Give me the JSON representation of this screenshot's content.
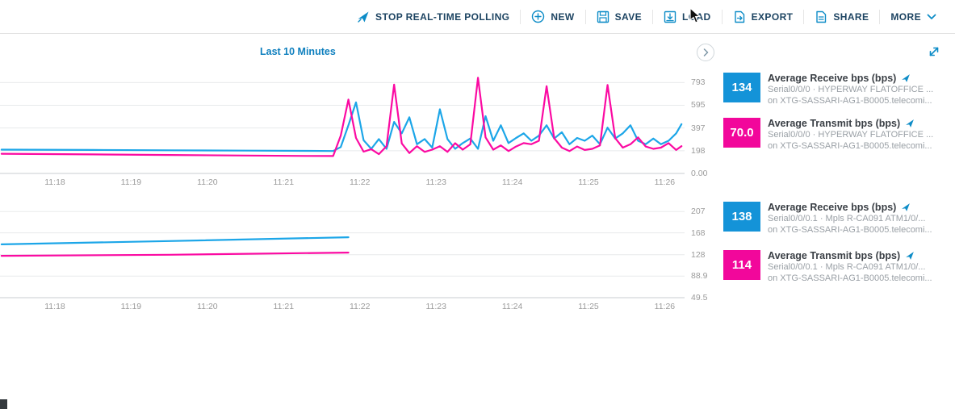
{
  "toolbar": {
    "items": [
      {
        "label": "STOP REAL-TIME POLLING",
        "icon": "rocket"
      },
      {
        "label": "NEW",
        "icon": "plus-circle"
      },
      {
        "label": "SAVE",
        "icon": "save"
      },
      {
        "label": "LOAD",
        "icon": "load"
      },
      {
        "label": "EXPORT",
        "icon": "export"
      },
      {
        "label": "SHARE",
        "icon": "share"
      },
      {
        "label": "MORE",
        "icon": "chevron-down"
      }
    ]
  },
  "subheader": {
    "time_range_label": "Last 10 Minutes"
  },
  "colors": {
    "accent_blue": "#0d8cc7",
    "toolbar_text": "#1d4462",
    "line_blue": "#1ca6e8",
    "line_pink": "#fb0aa2",
    "box_blue": "#1493d8",
    "box_pink": "#f2079b",
    "axis_text": "#9b9b9b",
    "gridline": "#e8eaec"
  },
  "chart_data": [
    {
      "type": "line",
      "title": "",
      "xlabel": "time of day",
      "ylabel": "bps",
      "xlim": [
        17.28,
        26.26
      ],
      "ylim": [
        0,
        880
      ],
      "x_unit": "minutes after 11:00",
      "grid": "horizontal",
      "legend_position": "right",
      "ygrid": [
        {
          "v": 793,
          "label": "793"
        },
        {
          "v": 595,
          "label": "595"
        },
        {
          "v": 397,
          "label": "397"
        },
        {
          "v": 198,
          "label": "198"
        },
        {
          "v": 0,
          "label": "0.00"
        }
      ],
      "xticks": [
        {
          "v": 18,
          "label": "11:18"
        },
        {
          "v": 19,
          "label": "11:19"
        },
        {
          "v": 20,
          "label": "11:20"
        },
        {
          "v": 21,
          "label": "11:21"
        },
        {
          "v": 22,
          "label": "11:22"
        },
        {
          "v": 23,
          "label": "11:23"
        },
        {
          "v": 24,
          "label": "11:24"
        },
        {
          "v": 25,
          "label": "11:25"
        },
        {
          "v": 26,
          "label": "11:26"
        }
      ],
      "series": [
        {
          "name": "Average Receive bps (bps)",
          "color": "#1ca6e8",
          "points": [
            [
              17.3,
              208
            ],
            [
              18.5,
              205
            ],
            [
              19.5,
              202
            ],
            [
              20.5,
              199
            ],
            [
              21.3,
              197
            ],
            [
              21.65,
              196
            ],
            [
              21.75,
              230
            ],
            [
              21.85,
              420
            ],
            [
              21.95,
              620
            ],
            [
              22.05,
              290
            ],
            [
              22.15,
              215
            ],
            [
              22.25,
              300
            ],
            [
              22.35,
              215
            ],
            [
              22.45,
              450
            ],
            [
              22.55,
              350
            ],
            [
              22.65,
              490
            ],
            [
              22.75,
              255
            ],
            [
              22.85,
              300
            ],
            [
              22.95,
              225
            ],
            [
              23.05,
              560
            ],
            [
              23.15,
              300
            ],
            [
              23.25,
              215
            ],
            [
              23.35,
              265
            ],
            [
              23.45,
              305
            ],
            [
              23.55,
              215
            ],
            [
              23.65,
              500
            ],
            [
              23.75,
              285
            ],
            [
              23.85,
              420
            ],
            [
              23.95,
              265
            ],
            [
              24.05,
              310
            ],
            [
              24.15,
              350
            ],
            [
              24.25,
              285
            ],
            [
              24.35,
              330
            ],
            [
              24.45,
              420
            ],
            [
              24.55,
              305
            ],
            [
              24.65,
              360
            ],
            [
              24.75,
              255
            ],
            [
              24.85,
              310
            ],
            [
              24.95,
              285
            ],
            [
              25.05,
              330
            ],
            [
              25.15,
              255
            ],
            [
              25.25,
              400
            ],
            [
              25.35,
              305
            ],
            [
              25.45,
              350
            ],
            [
              25.55,
              420
            ],
            [
              25.65,
              285
            ],
            [
              25.75,
              255
            ],
            [
              25.85,
              305
            ],
            [
              25.95,
              255
            ],
            [
              26.05,
              285
            ],
            [
              26.15,
              350
            ],
            [
              26.22,
              430
            ]
          ]
        },
        {
          "name": "Average Transmit bps (bps)",
          "color": "#fb0aa2",
          "points": [
            [
              17.3,
              172
            ],
            [
              18.5,
              166
            ],
            [
              19.5,
              161
            ],
            [
              20.5,
              156
            ],
            [
              21.3,
              153
            ],
            [
              21.65,
              152
            ],
            [
              21.75,
              330
            ],
            [
              21.85,
              645
            ],
            [
              21.95,
              310
            ],
            [
              22.05,
              190
            ],
            [
              22.15,
              212
            ],
            [
              22.25,
              168
            ],
            [
              22.35,
              238
            ],
            [
              22.45,
              775
            ],
            [
              22.55,
              262
            ],
            [
              22.65,
              178
            ],
            [
              22.75,
              238
            ],
            [
              22.85,
              188
            ],
            [
              22.95,
              208
            ],
            [
              23.05,
              238
            ],
            [
              23.15,
              188
            ],
            [
              23.25,
              264
            ],
            [
              23.35,
              208
            ],
            [
              23.45,
              254
            ],
            [
              23.55,
              835
            ],
            [
              23.65,
              315
            ],
            [
              23.75,
              208
            ],
            [
              23.85,
              245
            ],
            [
              23.95,
              195
            ],
            [
              24.05,
              235
            ],
            [
              24.15,
              265
            ],
            [
              24.25,
              255
            ],
            [
              24.35,
              285
            ],
            [
              24.45,
              762
            ],
            [
              24.55,
              308
            ],
            [
              24.65,
              225
            ],
            [
              24.75,
              195
            ],
            [
              24.85,
              235
            ],
            [
              24.95,
              205
            ],
            [
              25.05,
              215
            ],
            [
              25.15,
              245
            ],
            [
              25.25,
              772
            ],
            [
              25.35,
              308
            ],
            [
              25.45,
              225
            ],
            [
              25.55,
              255
            ],
            [
              25.65,
              315
            ],
            [
              25.75,
              235
            ],
            [
              25.85,
              215
            ],
            [
              25.95,
              225
            ],
            [
              26.05,
              265
            ],
            [
              26.15,
              205
            ],
            [
              26.22,
              238
            ]
          ]
        }
      ],
      "legend": [
        {
          "value": "134",
          "color": "#1493d8",
          "title": "Average Receive bps (bps)",
          "line2": "Serial0/0/0 · HYPERWAY FLATOFFICE ...",
          "line3": "on XTG-SASSARI-AG1-B0005.telecomi..."
        },
        {
          "value": "70.0",
          "color": "#f2079b",
          "title": "Average Transmit bps (bps)",
          "line2": "Serial0/0/0 · HYPERWAY FLATOFFICE ...",
          "line3": "on XTG-SASSARI-AG1-B0005.telecomi..."
        }
      ]
    },
    {
      "type": "line",
      "title": "",
      "xlabel": "time of day",
      "ylabel": "bps",
      "xlim": [
        17.28,
        26.26
      ],
      "ylim": [
        49.5,
        225
      ],
      "x_unit": "minutes after 11:00",
      "grid": "horizontal",
      "legend_position": "right",
      "ygrid": [
        {
          "v": 207,
          "label": "207"
        },
        {
          "v": 168,
          "label": "168"
        },
        {
          "v": 128,
          "label": "128"
        },
        {
          "v": 88.9,
          "label": "88.9"
        },
        {
          "v": 49.5,
          "label": "49.5"
        }
      ],
      "xticks": [
        {
          "v": 18,
          "label": "11:18"
        },
        {
          "v": 19,
          "label": "11:19"
        },
        {
          "v": 20,
          "label": "11:20"
        },
        {
          "v": 21,
          "label": "11:21"
        },
        {
          "v": 22,
          "label": "11:22"
        },
        {
          "v": 23,
          "label": "11:23"
        },
        {
          "v": 24,
          "label": "11:24"
        },
        {
          "v": 25,
          "label": "11:25"
        },
        {
          "v": 26,
          "label": "11:26"
        }
      ],
      "series": [
        {
          "name": "Average Receive bps (bps)",
          "color": "#1ca6e8",
          "points": [
            [
              17.3,
              147
            ],
            [
              19.5,
              153
            ],
            [
              21.85,
              160
            ]
          ]
        },
        {
          "name": "Average Transmit bps (bps)",
          "color": "#fb0aa2",
          "points": [
            [
              17.3,
              126
            ],
            [
              19.5,
              128
            ],
            [
              21.85,
              132
            ]
          ]
        }
      ],
      "legend": [
        {
          "value": "138",
          "color": "#1493d8",
          "title": "Average Receive bps (bps)",
          "line2": "Serial0/0/0.1 · Mpls R-CA091  ATM1/0/...",
          "line3": "on XTG-SASSARI-AG1-B0005.telecomi..."
        },
        {
          "value": "114",
          "color": "#f2079b",
          "title": "Average Transmit bps (bps)",
          "line2": "Serial0/0/0.1 · Mpls R-CA091  ATM1/0/...",
          "line3": "on XTG-SASSARI-AG1-B0005.telecomi..."
        }
      ]
    }
  ]
}
